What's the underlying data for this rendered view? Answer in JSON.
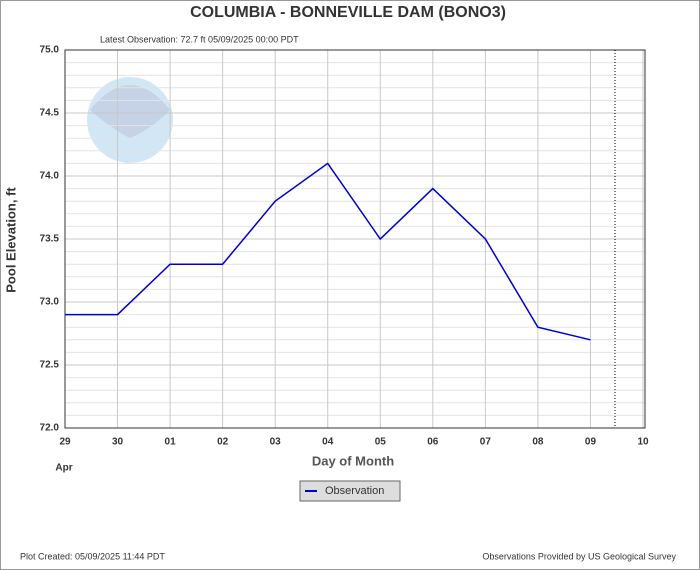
{
  "chart_data": {
    "type": "line",
    "title": "COLUMBIA - BONNEVILLE DAM  (BONO3)",
    "subtitle": "Latest Observation: 72.7 ft 05/09/2025 00:00 PDT",
    "y_label": "Pool Elevation, ft",
    "x_label": "Day of Month",
    "x_sublabel": "Apr",
    "categories": [
      "29",
      "30",
      "01",
      "02",
      "03",
      "04",
      "05",
      "06",
      "07",
      "08",
      "09",
      "10"
    ],
    "series": [
      {
        "name": "Observation",
        "color": "#0000cc",
        "values": [
          72.9,
          72.9,
          73.3,
          73.3,
          73.8,
          74.1,
          73.5,
          73.9,
          73.5,
          72.8,
          72.7,
          null
        ]
      }
    ],
    "ylim": [
      72.0,
      75.0
    ],
    "yticks": [
      {
        "value": 72,
        "label": "72.0"
      },
      {
        "value": 72.5,
        "label": "72.5"
      },
      {
        "value": 73,
        "label": "73.0"
      },
      {
        "value": 73.5,
        "label": "73.5"
      },
      {
        "value": 74,
        "label": "74.0"
      },
      {
        "value": 74.5,
        "label": "74.5"
      },
      {
        "value": 75,
        "label": "75.0"
      }
    ],
    "y_minor_ticks": [
      72.1,
      72.2,
      72.3,
      72.4,
      72.6,
      72.7,
      72.8,
      72.9,
      73.1,
      73.2,
      73.3,
      73.4,
      73.6,
      73.7,
      73.8,
      73.9,
      74.1,
      74.2,
      74.3,
      74.4,
      74.6,
      74.7,
      74.8,
      74.9
    ],
    "grid": true,
    "footer_left": "Plot Created: 05/09/2025 11:44 PDT",
    "footer_right": "Observations Provided by US Geological Survey"
  }
}
